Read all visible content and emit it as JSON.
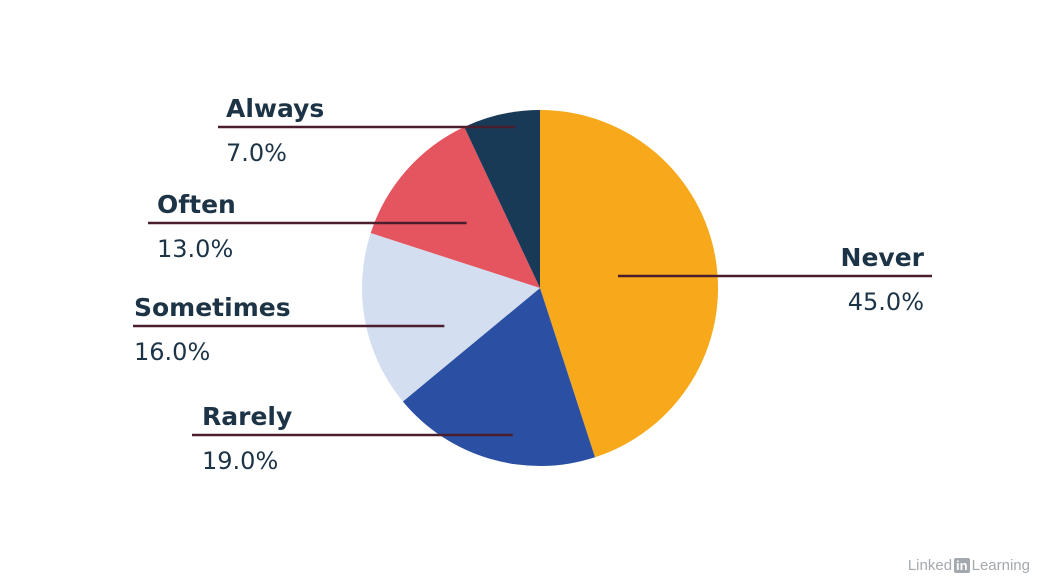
{
  "chart_data": {
    "type": "pie",
    "start_angle_deg": 0,
    "direction": "clockwise",
    "categories": [
      "Never",
      "Rarely",
      "Sometimes",
      "Often",
      "Always"
    ],
    "values": [
      45.0,
      19.0,
      16.0,
      13.0,
      7.0
    ],
    "value_labels": [
      "45.0%",
      "19.0%",
      "16.0%",
      "13.0%",
      "7.0%"
    ],
    "colors": [
      "#f7a81b",
      "#2b50a3",
      "#d3def0",
      "#e5555f",
      "#193a56"
    ],
    "legend": "none"
  },
  "watermark": {
    "text_left": "Linked",
    "text_badge": "in",
    "text_right": "Learning"
  }
}
